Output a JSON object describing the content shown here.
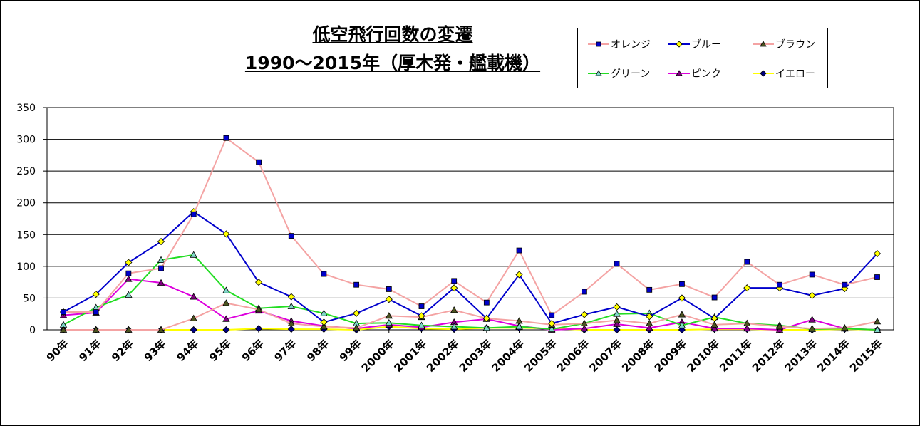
{
  "chart_data": {
    "type": "line",
    "title_line1": "低空飛行回数の変遷",
    "title_line2": "1990～2015年（厚木発・艦載機）",
    "xlabel": "",
    "ylabel": "",
    "ylim": [
      0,
      350
    ],
    "yticks": [
      0,
      50,
      100,
      150,
      200,
      250,
      300,
      350
    ],
    "grid": true,
    "legend_position": "top-right",
    "categories": [
      "90年",
      "91年",
      "92年",
      "93年",
      "94年",
      "95年",
      "96年",
      "97年",
      "98年",
      "99年",
      "2000年",
      "2001年",
      "2002年",
      "2003年",
      "2004年",
      "2005年",
      "2006年",
      "2007年",
      "2008年",
      "2009年",
      "2010年",
      "2011年",
      "2012年",
      "2013年",
      "2014年",
      "2015年"
    ],
    "series": [
      {
        "name": "オレンジ",
        "line_color": "#F4A3A3",
        "marker_color": "#0000CC",
        "marker": "square",
        "values": [
          28,
          28,
          89,
          97,
          182,
          302,
          264,
          148,
          88,
          71,
          64,
          37,
          77,
          43,
          125,
          23,
          60,
          104,
          63,
          72,
          51,
          107,
          71,
          87,
          71,
          83
        ]
      },
      {
        "name": "ブルー",
        "line_color": "#0000CC",
        "marker_color": "#FFFF00",
        "marker": "diamond",
        "values": [
          28,
          56,
          106,
          139,
          186,
          151,
          75,
          52,
          12,
          26,
          48,
          22,
          66,
          18,
          87,
          10,
          24,
          36,
          21,
          50,
          18,
          66,
          66,
          54,
          65,
          120
        ]
      },
      {
        "name": "ブラウン",
        "line_color": "#F4A3A3",
        "marker_color": "#4B5320",
        "marker": "triangle",
        "values": [
          0,
          0,
          0,
          0,
          18,
          42,
          32,
          10,
          5,
          3,
          22,
          20,
          31,
          18,
          14,
          8,
          10,
          15,
          10,
          24,
          8,
          10,
          5,
          2,
          3,
          13
        ]
      },
      {
        "name": "グリーン",
        "line_color": "#22DD22",
        "marker_color": "#7FD8C8",
        "marker": "triangle",
        "values": [
          8,
          35,
          55,
          110,
          118,
          62,
          34,
          37,
          26,
          10,
          11,
          7,
          5,
          3,
          5,
          1,
          10,
          25,
          26,
          7,
          20,
          10,
          7,
          1,
          2,
          0
        ]
      },
      {
        "name": "ピンク",
        "line_color": "#DD00DD",
        "marker_color": "#800080",
        "marker": "triangle",
        "values": [
          23,
          27,
          80,
          74,
          52,
          17,
          30,
          14,
          6,
          2,
          8,
          4,
          12,
          17,
          6,
          0,
          2,
          9,
          3,
          12,
          2,
          2,
          0,
          16,
          2,
          0
        ]
      },
      {
        "name": "イエロー",
        "line_color": "#FFFF00",
        "marker_color": "#000080",
        "marker": "diamond",
        "values": [
          0,
          0,
          0,
          0,
          0,
          0,
          2,
          1,
          1,
          0,
          5,
          2,
          1,
          3,
          3,
          2,
          0,
          0,
          0,
          0,
          1,
          1,
          0,
          0,
          1,
          0
        ]
      }
    ]
  }
}
